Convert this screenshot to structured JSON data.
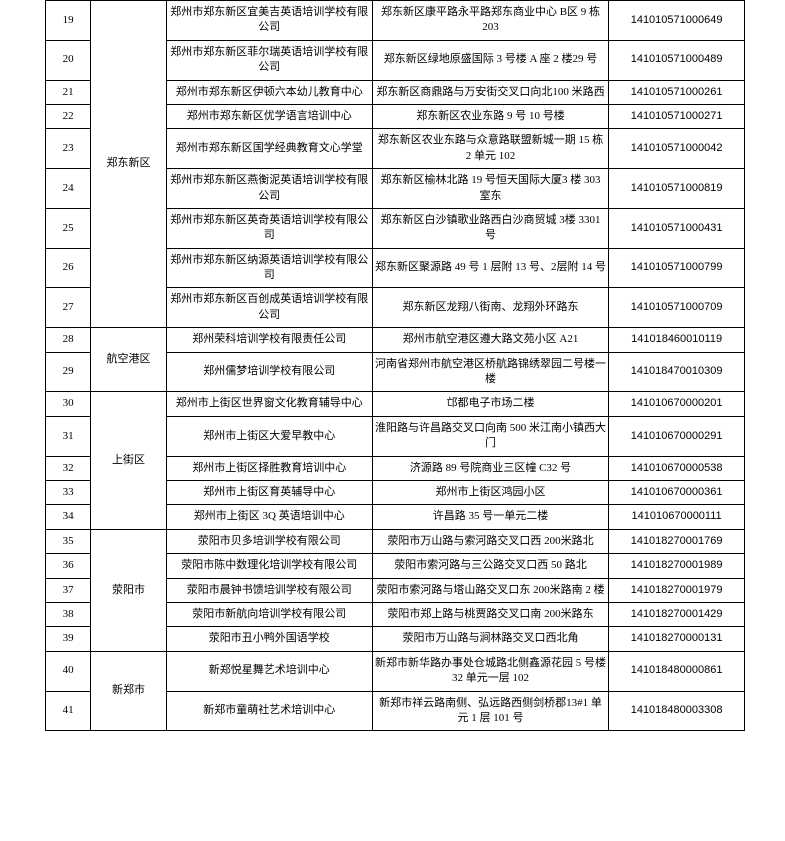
{
  "table": {
    "rows": [
      {
        "idx": "19",
        "district": "",
        "name": "郑州市郑东新区宜美吉英语培训学校有限公司",
        "address": "郑东新区康平路永平路郑东商业中心 B区 9 栋 203",
        "code": "141010571000649"
      },
      {
        "idx": "20",
        "district": "",
        "name": "郑州市郑东新区菲尔瑞英语培训学校有限公司",
        "address": "郑东新区绿地原盛国际 3 号楼 A 座 2 楼29 号",
        "code": "141010571000489"
      },
      {
        "idx": "21",
        "district": "",
        "name": "郑州市郑东新区伊顿六本幼儿教育中心",
        "address": "郑东新区商鼎路与万安街交叉口向北100 米路西",
        "code": "141010571000261"
      },
      {
        "idx": "22",
        "district": "",
        "name": "郑州市郑东新区优学语言培训中心",
        "address": "郑东新区农业东路 9 号 10 号楼",
        "code": "141010571000271"
      },
      {
        "idx": "23",
        "district": "郑东新区",
        "name": "郑州市郑东新区国学经典教育文心学堂",
        "address": "郑东新区农业东路与众意路联盟新城一期 15 栋 2 单元 102",
        "code": "141010571000042"
      },
      {
        "idx": "24",
        "district": "",
        "name": "郑州市郑东新区燕衡泥英语培训学校有限公司",
        "address": "郑东新区榆林北路 19 号恒天国际大厦3 楼 303 室东",
        "code": "141010571000819"
      },
      {
        "idx": "25",
        "district": "",
        "name": "郑州市郑东新区英奇英语培训学校有限公司",
        "address": "郑东新区白沙镇歌业路西白沙商贸城 3楼 3301 号",
        "code": "141010571000431"
      },
      {
        "idx": "26",
        "district": "",
        "name": "郑州市郑东新区纳源英语培训学校有限公司",
        "address": "郑东新区聚源路 49 号 1 层附 13 号、2层附 14 号",
        "code": "141010571000799"
      },
      {
        "idx": "27",
        "district": "",
        "name": "郑州市郑东新区百创成英语培训学校有限公司",
        "address": "郑东新区龙翔八街南、龙翔外环路东",
        "code": "141010571000709"
      },
      {
        "idx": "28",
        "district": "",
        "name": "郑州荣科培训学校有限责任公司",
        "address": "郑州市航空港区遵大路文苑小区 A21",
        "code": "141018460010119"
      },
      {
        "idx": "29",
        "district": "航空港区",
        "name": "郑州儒梦培训学校有限公司",
        "address": "河南省郑州市航空港区桥航路锦绣翠园二号楼一楼",
        "code": "141018470010309"
      },
      {
        "idx": "30",
        "district": "",
        "name": "郑州市上街区世界窗文化教育辅导中心",
        "address": "邙都电子市场二楼",
        "code": "141010670000201"
      },
      {
        "idx": "31",
        "district": "",
        "name": "郑州市上街区大爱早教中心",
        "address": "淮阳路与许昌路交叉口向南 500 米江南小镇西大门",
        "code": "141010670000291"
      },
      {
        "idx": "32",
        "district": "上街区",
        "name": "郑州市上街区择胜教育培训中心",
        "address": "济源路 89 号院商业三区幢 C32 号",
        "code": "141010670000538"
      },
      {
        "idx": "33",
        "district": "",
        "name": "郑州市上街区育英辅导中心",
        "address": "郑州市上街区鸿园小区",
        "code": "141010670000361"
      },
      {
        "idx": "34",
        "district": "",
        "name": "郑州市上街区 3Q 英语培训中心",
        "address": "许昌路 35 号一单元二楼",
        "code": "141010670000111"
      },
      {
        "idx": "35",
        "district": "",
        "name": "荥阳市贝多培训学校有限公司",
        "address": "荥阳市万山路与索河路交叉口西 200米路北",
        "code": "141018270001769"
      },
      {
        "idx": "36",
        "district": "",
        "name": "荥阳市陈中数理化培训学校有限公司",
        "address": "荥阳市索河路与三公路交叉口西 50 路北",
        "code": "141018270001989"
      },
      {
        "idx": "37",
        "district": "荥阳市",
        "name": "荥阳市晨钟书馈培训学校有限公司",
        "address": "荥阳市索河路与塔山路交叉口东 200米路南 2 楼",
        "code": "141018270001979"
      },
      {
        "idx": "38",
        "district": "",
        "name": "荥阳市新航向培训学校有限公司",
        "address": "荥阳市郑上路与桃贾路交叉口南 200米路东",
        "code": "141018270001429"
      },
      {
        "idx": "39",
        "district": "",
        "name": "荥阳市丑小鸭外国语学校",
        "address": "荥阳市万山路与涧林路交叉口西北角",
        "code": "141018270000131"
      },
      {
        "idx": "40",
        "district": "",
        "name": "新郑悦星舞艺术培训中心",
        "address": "新郑市新华路办事处仓城路北侧鑫源花园 5 号楼 32 单元一层 102",
        "code": "141018480000861"
      },
      {
        "idx": "41",
        "district": "新郑市",
        "name": "新郑市童萌社艺术培训中心",
        "address": "新郑市祥云路南侧、弘远路西侧剑桥郡13#1 单元 1 层 101 号",
        "code": "141018480003308"
      }
    ],
    "district_groups": [
      {
        "start": 0,
        "span": 9,
        "label_row": 4
      },
      {
        "start": 9,
        "span": 2,
        "label_row": 10
      },
      {
        "start": 11,
        "span": 5,
        "label_row": 13
      },
      {
        "start": 16,
        "span": 5,
        "label_row": 18
      },
      {
        "start": 21,
        "span": 2,
        "label_row": 22
      }
    ]
  }
}
